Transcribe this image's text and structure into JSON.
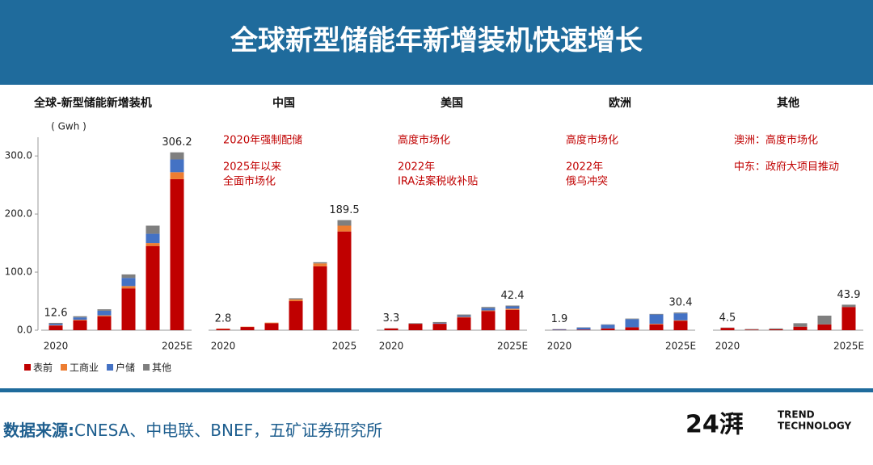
{
  "title": "全球新型储能年新增装机快速增长",
  "source_label": "数据来源:",
  "source": "CNESA、中电联、BNEF，五矿证券研究所",
  "logo": {
    "mark": "24湃",
    "lines": [
      "TREND",
      "TECHNOLOGY"
    ]
  },
  "chart_data": [
    {
      "type": "bar",
      "stacked": true,
      "title": "全球-新型储能新增装机",
      "y_label": "( Gwh )",
      "categories": [
        "2020",
        null,
        null,
        null,
        null,
        "2025E"
      ],
      "series": [
        {
          "name": "表前",
          "color": "#c00000",
          "values": [
            8,
            17,
            24,
            72,
            145,
            260
          ]
        },
        {
          "name": "工商业",
          "color": "#ed7d31",
          "values": [
            0.5,
            1,
            1.5,
            4,
            5,
            12
          ]
        },
        {
          "name": "户储",
          "color": "#4472c4",
          "values": [
            2.5,
            4,
            8,
            14,
            16,
            22
          ]
        },
        {
          "name": "其他",
          "color": "#7f7f7f",
          "values": [
            1.6,
            2,
            2.5,
            6,
            14,
            12.2
          ]
        }
      ],
      "annotations": [
        {
          "x": "2020",
          "text": "12.6"
        },
        {
          "x": "2025E",
          "text": "306.2"
        }
      ],
      "ylim": [
        0,
        360
      ],
      "yticks": [
        {
          "value": 0,
          "label": "0.0"
        },
        {
          "value": 100,
          "label": "100.0"
        },
        {
          "value": 200,
          "label": "200.0"
        },
        {
          "value": 300,
          "label": "300.0"
        }
      ],
      "legend": "bottom"
    },
    {
      "type": "bar",
      "stacked": true,
      "title": "中国",
      "categories": [
        "2020",
        null,
        null,
        null,
        null,
        "2025"
      ],
      "series": [
        {
          "name": "表前",
          "color": "#c00000",
          "values": [
            2.4,
            5.5,
            12,
            50,
            110,
            170
          ]
        },
        {
          "name": "工商业",
          "color": "#ed7d31",
          "values": [
            0.4,
            0.5,
            1,
            3,
            5,
            10
          ]
        },
        {
          "name": "户储",
          "color": "#4472c4",
          "values": [
            0,
            0,
            0,
            0,
            0,
            0
          ]
        },
        {
          "name": "其他",
          "color": "#7f7f7f",
          "values": [
            0,
            0,
            0,
            2,
            2,
            9.5
          ]
        }
      ],
      "annotations": [
        {
          "x": "2020",
          "text": "2.8"
        },
        {
          "x": "2025",
          "text": "189.5"
        }
      ],
      "notes": [
        [
          "2020年强制配储"
        ],
        [
          "2025年以来",
          "全面市场化"
        ]
      ],
      "ylim": [
        0,
        360
      ]
    },
    {
      "type": "bar",
      "stacked": true,
      "title": "美国",
      "categories": [
        "2020",
        null,
        null,
        null,
        null,
        "2025E"
      ],
      "series": [
        {
          "name": "表前",
          "color": "#c00000",
          "values": [
            3,
            11,
            11,
            22,
            33,
            35
          ]
        },
        {
          "name": "工商业",
          "color": "#ed7d31",
          "values": [
            0,
            0,
            0.5,
            1,
            1,
            2
          ]
        },
        {
          "name": "户储",
          "color": "#4472c4",
          "values": [
            0,
            0,
            1,
            2,
            4,
            4
          ]
        },
        {
          "name": "其他",
          "color": "#7f7f7f",
          "values": [
            0.3,
            1,
            1.5,
            2,
            2,
            1.4
          ]
        }
      ],
      "annotations": [
        {
          "x": "2020",
          "text": "3.3"
        },
        {
          "x": "2025E",
          "text": "42.4"
        }
      ],
      "notes": [
        [
          "高度市场化"
        ],
        [
          "2022年",
          "IRA法案税收补贴"
        ]
      ],
      "ylim": [
        0,
        360
      ]
    },
    {
      "type": "bar",
      "stacked": true,
      "title": "欧洲",
      "categories": [
        "2020",
        null,
        null,
        null,
        null,
        "2025E"
      ],
      "series": [
        {
          "name": "表前",
          "color": "#c00000",
          "values": [
            0.5,
            1,
            3,
            5,
            10,
            16
          ]
        },
        {
          "name": "工商业",
          "color": "#ed7d31",
          "values": [
            0,
            0,
            0,
            0,
            1,
            1
          ]
        },
        {
          "name": "户储",
          "color": "#4472c4",
          "values": [
            1,
            3.5,
            6.5,
            14,
            16,
            12
          ]
        },
        {
          "name": "其他",
          "color": "#7f7f7f",
          "values": [
            0.4,
            0.5,
            0.5,
            1,
            1,
            1.4
          ]
        }
      ],
      "annotations": [
        {
          "x": "2020",
          "text": "1.9"
        },
        {
          "x": "2025E",
          "text": "30.4"
        }
      ],
      "notes": [
        [
          "高度市场化"
        ],
        [
          "2022年",
          "俄乌冲突"
        ]
      ],
      "ylim": [
        0,
        360
      ]
    },
    {
      "type": "bar",
      "stacked": true,
      "title": "其他",
      "categories": [
        "2020",
        null,
        null,
        null,
        null,
        "2025E"
      ],
      "series": [
        {
          "name": "表前",
          "color": "#c00000",
          "values": [
            4,
            1,
            1.5,
            6,
            10,
            40
          ]
        },
        {
          "name": "工商业",
          "color": "#ed7d31",
          "values": [
            0,
            0,
            0,
            0,
            0,
            0
          ]
        },
        {
          "name": "户储",
          "color": "#4472c4",
          "values": [
            0,
            0,
            0,
            0,
            0,
            0
          ]
        },
        {
          "name": "其他",
          "color": "#7f7f7f",
          "values": [
            0.5,
            1,
            1.5,
            6,
            15,
            3.9
          ]
        }
      ],
      "annotations": [
        {
          "x": "2020",
          "text": "4.5"
        },
        {
          "x": "2025E",
          "text": "43.9"
        }
      ],
      "notes": [
        [
          "澳洲：高度市场化"
        ],
        [
          "中东：政府大项目推动"
        ]
      ],
      "ylim": [
        0,
        360
      ]
    }
  ]
}
